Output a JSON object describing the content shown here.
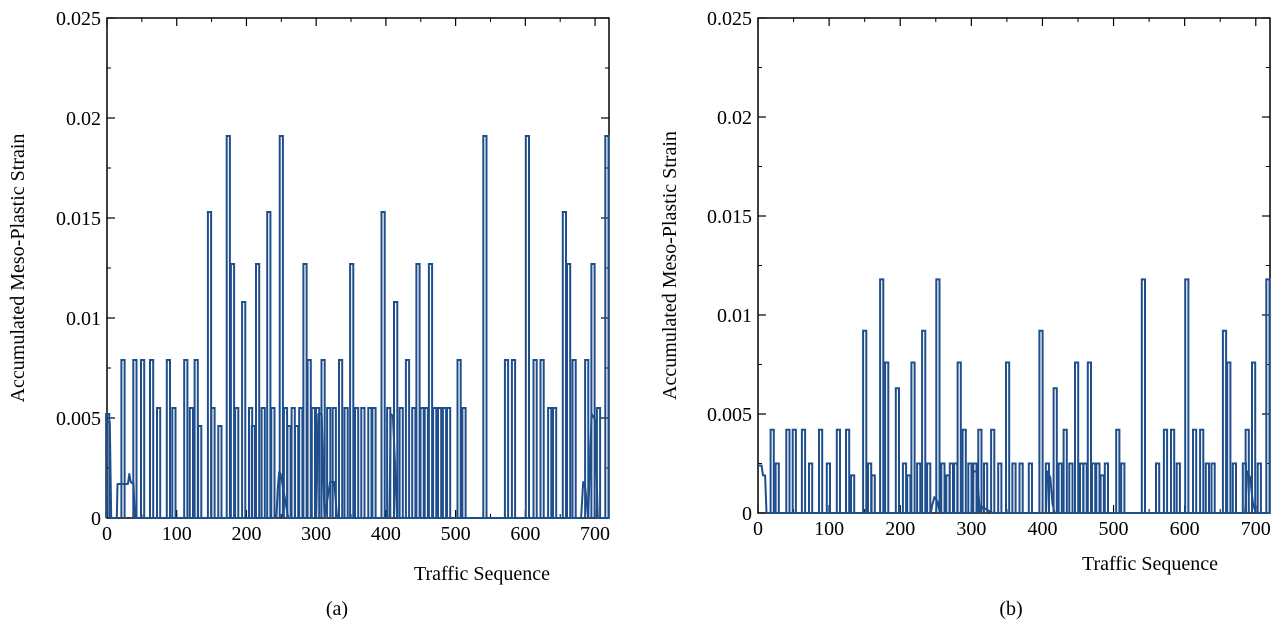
{
  "chart_data": [
    {
      "type": "line",
      "panel_label": "(a)",
      "xlabel": "Traffic Sequence",
      "ylabel": "Accumulated Meso-Plastic Strain",
      "xlim": [
        0,
        720
      ],
      "ylim": [
        0,
        0.025
      ],
      "xticks": [
        0,
        100,
        200,
        300,
        400,
        500,
        600,
        700
      ],
      "yticks": [
        0,
        0.005,
        0.01,
        0.015,
        0.02,
        0.025
      ],
      "xtick_labels": [
        "0",
        "100",
        "200",
        "300",
        "400",
        "500",
        "600",
        "700"
      ],
      "ytick_labels": [
        "0",
        "0.005",
        "0.01",
        "0.015",
        "0.02",
        "0.025"
      ],
      "grid": false,
      "line_color": "#1f4e8c",
      "baseline": [
        [
          0,
          0.0048
        ],
        [
          4,
          0.0048
        ],
        [
          6,
          0
        ],
        [
          14,
          0
        ],
        [
          15,
          0.0017
        ],
        [
          30,
          0.0017
        ],
        [
          32,
          0.0022
        ],
        [
          34,
          0.0018
        ],
        [
          38,
          0.0017
        ],
        [
          40,
          0
        ],
        [
          243,
          0
        ],
        [
          245,
          0.0015
        ],
        [
          247,
          0.0023
        ],
        [
          249,
          0.0022
        ],
        [
          260,
          0
        ],
        [
          300,
          0
        ],
        [
          303,
          0.0052
        ],
        [
          308,
          0.0052
        ],
        [
          312,
          0
        ],
        [
          320,
          0.0018
        ],
        [
          326,
          0.0018
        ],
        [
          330,
          0
        ],
        [
          405,
          0
        ],
        [
          407,
          0.0052
        ],
        [
          410,
          0.0051
        ],
        [
          413,
          0.0027
        ],
        [
          416,
          0
        ],
        [
          680,
          0
        ],
        [
          683,
          0.0018
        ],
        [
          686,
          0.0015
        ],
        [
          690,
          0
        ],
        [
          695,
          0.0052
        ],
        [
          700,
          0.0049
        ],
        [
          704,
          0
        ],
        [
          720,
          0
        ]
      ],
      "spikes": [
        [
          1,
          0.0052
        ],
        [
          23,
          0.0079
        ],
        [
          40,
          0.0079
        ],
        [
          51,
          0.0079
        ],
        [
          64,
          0.0079
        ],
        [
          74,
          0.0055
        ],
        [
          88,
          0.0079
        ],
        [
          96,
          0.0055
        ],
        [
          113,
          0.0079
        ],
        [
          121,
          0.0055
        ],
        [
          128,
          0.0079
        ],
        [
          133,
          0.0046
        ],
        [
          147,
          0.0153
        ],
        [
          152,
          0.0055
        ],
        [
          162,
          0.0046
        ],
        [
          174,
          0.0191
        ],
        [
          180,
          0.0127
        ],
        [
          186,
          0.0055
        ],
        [
          196,
          0.0108
        ],
        [
          206,
          0.0055
        ],
        [
          210,
          0.0046
        ],
        [
          216,
          0.0127
        ],
        [
          224,
          0.0055
        ],
        [
          232,
          0.0153
        ],
        [
          238,
          0.0055
        ],
        [
          250,
          0.0191
        ],
        [
          256,
          0.0055
        ],
        [
          261,
          0.0046
        ],
        [
          267,
          0.0055
        ],
        [
          272,
          0.0046
        ],
        [
          278,
          0.0055
        ],
        [
          284,
          0.0127
        ],
        [
          290,
          0.0079
        ],
        [
          296,
          0.0055
        ],
        [
          302,
          0.0055
        ],
        [
          310,
          0.0079
        ],
        [
          318,
          0.0055
        ],
        [
          326,
          0.0055
        ],
        [
          335,
          0.0079
        ],
        [
          343,
          0.0055
        ],
        [
          351,
          0.0127
        ],
        [
          358,
          0.0055
        ],
        [
          367,
          0.0055
        ],
        [
          377,
          0.0055
        ],
        [
          383,
          0.0055
        ],
        [
          396,
          0.0153
        ],
        [
          404,
          0.0055
        ],
        [
          414,
          0.0108
        ],
        [
          422,
          0.0055
        ],
        [
          431,
          0.0079
        ],
        [
          440,
          0.0055
        ],
        [
          446,
          0.0127
        ],
        [
          452,
          0.0055
        ],
        [
          458,
          0.0055
        ],
        [
          464,
          0.0127
        ],
        [
          470,
          0.0055
        ],
        [
          477,
          0.0055
        ],
        [
          484,
          0.0055
        ],
        [
          490,
          0.0055
        ],
        [
          505,
          0.0079
        ],
        [
          512,
          0.0055
        ],
        [
          542,
          0.0191
        ],
        [
          573,
          0.0079
        ],
        [
          583,
          0.0079
        ],
        [
          603,
          0.0191
        ],
        [
          614,
          0.0079
        ],
        [
          624,
          0.0079
        ],
        [
          635,
          0.0055
        ],
        [
          642,
          0.0055
        ],
        [
          656,
          0.0153
        ],
        [
          662,
          0.0127
        ],
        [
          670,
          0.0079
        ],
        [
          688,
          0.0079
        ],
        [
          697,
          0.0127
        ],
        [
          705,
          0.0055
        ],
        [
          717,
          0.0191
        ]
      ]
    },
    {
      "type": "line",
      "panel_label": "(b)",
      "xlabel": "Traffic Sequence",
      "ylabel": "Accumulated Meso-Plastic Strain",
      "xlim": [
        0,
        720
      ],
      "ylim": [
        0,
        0.025
      ],
      "xticks": [
        0,
        100,
        200,
        300,
        400,
        500,
        600,
        700
      ],
      "yticks": [
        0,
        0.005,
        0.01,
        0.015,
        0.02,
        0.025
      ],
      "xtick_labels": [
        "0",
        "100",
        "200",
        "300",
        "400",
        "500",
        "600",
        "700"
      ],
      "ytick_labels": [
        "0",
        "0.005",
        "0.01",
        "0.015",
        "0.02",
        "0.025"
      ],
      "grid": false,
      "line_color": "#1f4e8c",
      "baseline": [
        [
          0,
          0.0024
        ],
        [
          5,
          0.0024
        ],
        [
          7,
          0.0019
        ],
        [
          10,
          0.0019
        ],
        [
          12,
          0
        ],
        [
          243,
          0
        ],
        [
          245,
          0.0004
        ],
        [
          248,
          0.0008
        ],
        [
          252,
          0.0006
        ],
        [
          256,
          0
        ],
        [
          300,
          0
        ],
        [
          303,
          0.0021
        ],
        [
          308,
          0.0021
        ],
        [
          312,
          0
        ],
        [
          316,
          0.0003
        ],
        [
          325,
          0.0001
        ],
        [
          330,
          0
        ],
        [
          405,
          0
        ],
        [
          407,
          0.0021
        ],
        [
          411,
          0.0018
        ],
        [
          414,
          0.0005
        ],
        [
          417,
          0
        ],
        [
          685,
          0
        ],
        [
          688,
          0.0021
        ],
        [
          692,
          0.0018
        ],
        [
          696,
          0.0005
        ],
        [
          700,
          0
        ],
        [
          720,
          0
        ]
      ],
      "spikes": [
        [
          20,
          0.0042
        ],
        [
          27,
          0.0025
        ],
        [
          42,
          0.0042
        ],
        [
          51,
          0.0042
        ],
        [
          64,
          0.0042
        ],
        [
          74,
          0.0025
        ],
        [
          88,
          0.0042
        ],
        [
          99,
          0.0025
        ],
        [
          113,
          0.0042
        ],
        [
          126,
          0.0042
        ],
        [
          133,
          0.0019
        ],
        [
          150,
          0.0092
        ],
        [
          157,
          0.0025
        ],
        [
          162,
          0.0019
        ],
        [
          174,
          0.0118
        ],
        [
          181,
          0.0076
        ],
        [
          196,
          0.0063
        ],
        [
          206,
          0.0025
        ],
        [
          212,
          0.0019
        ],
        [
          218,
          0.0076
        ],
        [
          226,
          0.0025
        ],
        [
          233,
          0.0092
        ],
        [
          240,
          0.0025
        ],
        [
          253,
          0.0118
        ],
        [
          260,
          0.0025
        ],
        [
          267,
          0.0019
        ],
        [
          272,
          0.0025
        ],
        [
          278,
          0.0025
        ],
        [
          283,
          0.0076
        ],
        [
          290,
          0.0042
        ],
        [
          298,
          0.0025
        ],
        [
          305,
          0.0025
        ],
        [
          312,
          0.0042
        ],
        [
          320,
          0.0025
        ],
        [
          330,
          0.0042
        ],
        [
          340,
          0.0025
        ],
        [
          351,
          0.0076
        ],
        [
          360,
          0.0025
        ],
        [
          370,
          0.0025
        ],
        [
          383,
          0.0025
        ],
        [
          398,
          0.0092
        ],
        [
          407,
          0.0025
        ],
        [
          418,
          0.0063
        ],
        [
          425,
          0.0025
        ],
        [
          432,
          0.0042
        ],
        [
          440,
          0.0025
        ],
        [
          448,
          0.0076
        ],
        [
          455,
          0.0025
        ],
        [
          460,
          0.0025
        ],
        [
          466,
          0.0076
        ],
        [
          472,
          0.0025
        ],
        [
          478,
          0.0025
        ],
        [
          484,
          0.0019
        ],
        [
          490,
          0.0025
        ],
        [
          506,
          0.0042
        ],
        [
          513,
          0.0025
        ],
        [
          542,
          0.0118
        ],
        [
          562,
          0.0025
        ],
        [
          573,
          0.0042
        ],
        [
          583,
          0.0042
        ],
        [
          591,
          0.0025
        ],
        [
          603,
          0.0118
        ],
        [
          614,
          0.0042
        ],
        [
          624,
          0.0042
        ],
        [
          632,
          0.0025
        ],
        [
          640,
          0.0025
        ],
        [
          656,
          0.0092
        ],
        [
          662,
          0.0076
        ],
        [
          670,
          0.0025
        ],
        [
          684,
          0.0025
        ],
        [
          688,
          0.0042
        ],
        [
          697,
          0.0076
        ],
        [
          705,
          0.0025
        ],
        [
          717,
          0.0118
        ]
      ]
    }
  ]
}
